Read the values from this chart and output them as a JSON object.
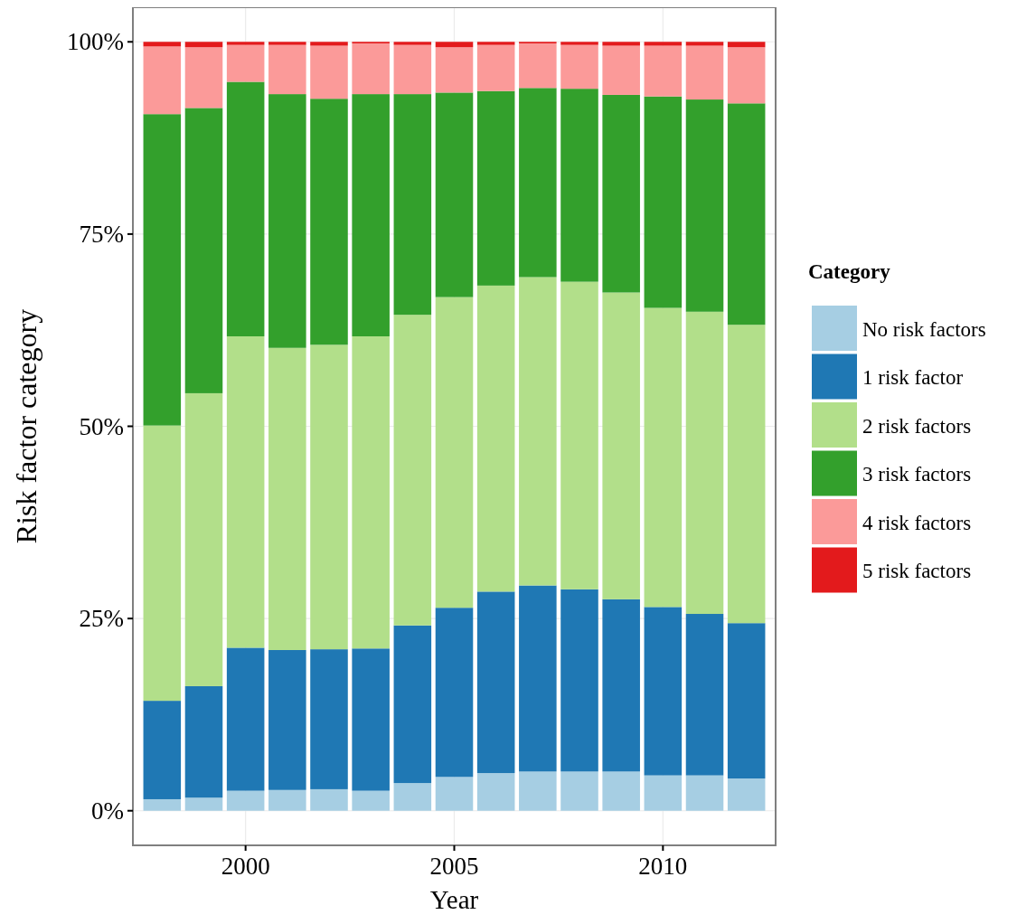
{
  "chart_data": {
    "type": "bar",
    "stacked": true,
    "xlabel": "Year",
    "ylabel": "Risk factor category",
    "legend_title": "Category",
    "legend": "right",
    "grid": true,
    "x": [
      1998,
      1999,
      2000,
      2001,
      2002,
      2003,
      2004,
      2005,
      2006,
      2007,
      2008,
      2009,
      2010,
      2011,
      2012
    ],
    "xlim": [
      1997.3,
      2012.7
    ],
    "xticks": [
      2000,
      2005,
      2010
    ],
    "ylim": [
      -4.5,
      104.5
    ],
    "yticks": [
      {
        "value": 0,
        "label": "0%"
      },
      {
        "value": 25,
        "label": "25%"
      },
      {
        "value": 50,
        "label": "50%"
      },
      {
        "value": 75,
        "label": "75%"
      },
      {
        "value": 100,
        "label": "100%"
      }
    ],
    "series": [
      {
        "name": "No risk factors",
        "color": "#a6cee3",
        "values": [
          1.5,
          1.7,
          2.6,
          2.7,
          2.8,
          2.6,
          3.6,
          4.4,
          4.9,
          5.1,
          5.1,
          5.1,
          4.6,
          4.6,
          4.2
        ]
      },
      {
        "name": "1 risk factor",
        "color": "#1f78b4",
        "values": [
          12.8,
          14.5,
          18.6,
          18.2,
          18.2,
          18.5,
          20.5,
          22.0,
          23.6,
          24.2,
          23.7,
          22.4,
          21.9,
          21.0,
          20.2
        ]
      },
      {
        "name": "2 risk factors",
        "color": "#b2df8a",
        "values": [
          35.8,
          38.1,
          40.5,
          39.3,
          39.6,
          40.6,
          40.4,
          40.4,
          39.8,
          40.1,
          40.0,
          39.9,
          38.9,
          39.3,
          38.8
        ]
      },
      {
        "name": "3 risk factors",
        "color": "#33a02c",
        "values": [
          40.5,
          37.1,
          33.1,
          33.0,
          32.0,
          31.5,
          28.7,
          26.6,
          25.3,
          24.6,
          25.1,
          25.7,
          27.5,
          27.6,
          28.8
        ]
      },
      {
        "name": "4 risk factors",
        "color": "#fb9a99",
        "values": [
          8.8,
          7.9,
          4.8,
          6.4,
          6.9,
          6.6,
          6.4,
          5.9,
          6.0,
          5.8,
          5.7,
          6.4,
          6.6,
          7.0,
          7.3
        ]
      },
      {
        "name": "5 risk factors",
        "color": "#e31a1c",
        "values": [
          0.6,
          0.7,
          0.4,
          0.4,
          0.5,
          0.2,
          0.4,
          0.7,
          0.4,
          0.2,
          0.4,
          0.5,
          0.5,
          0.5,
          0.7
        ]
      }
    ]
  }
}
